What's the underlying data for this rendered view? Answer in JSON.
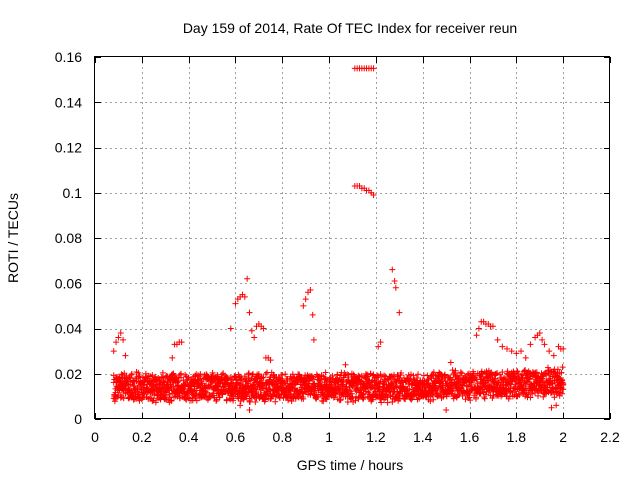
{
  "chart_data": {
    "type": "scatter",
    "title": "Day 159 of 2014, Rate Of TEC Index for receiver reun",
    "xlabel": "GPS time / hours",
    "ylabel": "ROTI / TECUs",
    "xlim": [
      0,
      2.2
    ],
    "ylim": [
      0,
      0.16
    ],
    "xticks": [
      "0",
      "0.2",
      "0.4",
      "0.6",
      "0.8",
      "1",
      "1.2",
      "1.4",
      "1.6",
      "1.8",
      "2",
      "2.2"
    ],
    "yticks": [
      "0",
      "0.02",
      "0.04",
      "0.06",
      "0.08",
      "0.1",
      "0.12",
      "0.14",
      "0.16"
    ],
    "grid": true,
    "marker": "plus",
    "color": "#ff0000",
    "baseline": {
      "x_range": [
        0.08,
        2.0
      ],
      "step": 0.0025,
      "y_center": 0.014,
      "y_spread": 0.007
    },
    "points": [
      [
        0.08,
        0.03
      ],
      [
        0.09,
        0.034
      ],
      [
        0.1,
        0.036
      ],
      [
        0.11,
        0.038
      ],
      [
        0.12,
        0.035
      ],
      [
        0.13,
        0.028
      ],
      [
        0.33,
        0.027
      ],
      [
        0.34,
        0.033
      ],
      [
        0.35,
        0.033
      ],
      [
        0.36,
        0.034
      ],
      [
        0.37,
        0.034
      ],
      [
        0.58,
        0.04
      ],
      [
        0.6,
        0.051
      ],
      [
        0.61,
        0.053
      ],
      [
        0.62,
        0.054
      ],
      [
        0.63,
        0.055
      ],
      [
        0.64,
        0.054
      ],
      [
        0.65,
        0.062
      ],
      [
        0.66,
        0.047
      ],
      [
        0.67,
        0.039
      ],
      [
        0.68,
        0.036
      ],
      [
        0.69,
        0.041
      ],
      [
        0.7,
        0.042
      ],
      [
        0.71,
        0.041
      ],
      [
        0.72,
        0.04
      ],
      [
        0.73,
        0.027
      ],
      [
        0.74,
        0.027
      ],
      [
        0.75,
        0.026
      ],
      [
        0.89,
        0.05
      ],
      [
        0.9,
        0.053
      ],
      [
        0.91,
        0.056
      ],
      [
        0.92,
        0.057
      ],
      [
        0.93,
        0.046
      ],
      [
        0.935,
        0.035
      ],
      [
        1.11,
        0.155
      ],
      [
        1.12,
        0.155
      ],
      [
        1.13,
        0.155
      ],
      [
        1.14,
        0.155
      ],
      [
        1.15,
        0.155
      ],
      [
        1.16,
        0.155
      ],
      [
        1.17,
        0.155
      ],
      [
        1.18,
        0.155
      ],
      [
        1.19,
        0.155
      ],
      [
        1.11,
        0.103
      ],
      [
        1.12,
        0.103
      ],
      [
        1.13,
        0.103
      ],
      [
        1.14,
        0.102
      ],
      [
        1.15,
        0.102
      ],
      [
        1.16,
        0.101
      ],
      [
        1.17,
        0.101
      ],
      [
        1.18,
        0.1
      ],
      [
        1.19,
        0.099
      ],
      [
        1.21,
        0.032
      ],
      [
        1.22,
        0.034
      ],
      [
        1.27,
        0.066
      ],
      [
        1.28,
        0.061
      ],
      [
        1.285,
        0.058
      ],
      [
        1.3,
        0.047
      ],
      [
        1.63,
        0.037
      ],
      [
        1.64,
        0.04
      ],
      [
        1.65,
        0.043
      ],
      [
        1.66,
        0.043
      ],
      [
        1.67,
        0.042
      ],
      [
        1.68,
        0.042
      ],
      [
        1.69,
        0.041
      ],
      [
        1.7,
        0.041
      ],
      [
        1.72,
        0.035
      ],
      [
        1.74,
        0.032
      ],
      [
        1.76,
        0.031
      ],
      [
        1.78,
        0.03
      ],
      [
        1.8,
        0.029
      ],
      [
        1.82,
        0.03
      ],
      [
        1.84,
        0.027
      ],
      [
        1.86,
        0.033
      ],
      [
        1.88,
        0.036
      ],
      [
        1.89,
        0.037
      ],
      [
        1.9,
        0.038
      ],
      [
        1.91,
        0.035
      ],
      [
        1.92,
        0.033
      ],
      [
        1.94,
        0.03
      ],
      [
        1.96,
        0.028
      ],
      [
        1.98,
        0.032
      ],
      [
        1.99,
        0.031
      ],
      [
        2.0,
        0.031
      ],
      [
        0.62,
        0.006
      ],
      [
        0.66,
        0.004
      ],
      [
        1.07,
        0.024
      ],
      [
        1.5,
        0.004
      ],
      [
        1.52,
        0.025
      ],
      [
        1.95,
        0.005
      ],
      [
        1.97,
        0.006
      ]
    ]
  }
}
